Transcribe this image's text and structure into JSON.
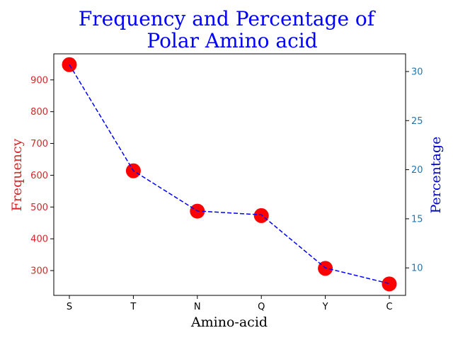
{
  "chart_data": {
    "type": "scatter",
    "title_lines": [
      "Frequency and Percentage of",
      "Polar Amino acid"
    ],
    "xlabel": "Amino-acid",
    "ylabel_left": "Frequency",
    "ylabel_right": "Percentage",
    "categories": [
      "S",
      "T",
      "N",
      "Q",
      "Y",
      "C"
    ],
    "series": [
      {
        "axis": "left",
        "style": "markers",
        "color": "#ff0000",
        "values": [
          948,
          614,
          487,
          473,
          307,
          258
        ]
      },
      {
        "axis": "right",
        "style": "dashed-line",
        "color": "#0000ff",
        "values": [
          30.7,
          19.9,
          15.8,
          15.4,
          10.0,
          8.4
        ]
      }
    ],
    "ylim_left": [
      222,
      982
    ],
    "yticks_left": [
      300,
      400,
      500,
      600,
      700,
      800,
      900
    ],
    "ylim_right": [
      7.2,
      31.8
    ],
    "yticks_right": [
      10,
      15,
      20,
      25,
      30
    ],
    "colors": {
      "left_axis": "#d62728",
      "right_axis": "#1f77b4",
      "title": "#0000ff",
      "right_label": "#0000cd"
    },
    "grid": false
  }
}
